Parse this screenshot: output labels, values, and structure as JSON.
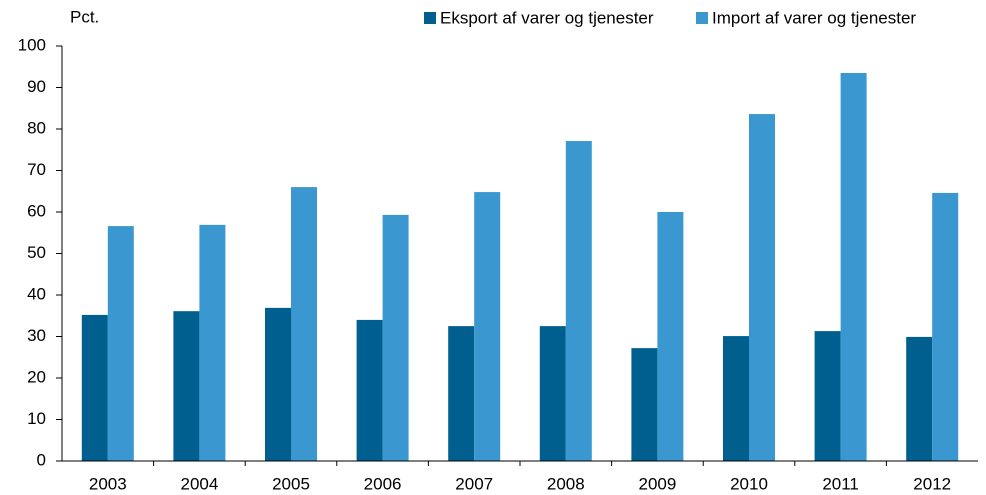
{
  "chart_data": {
    "type": "bar",
    "y_label": "Pct.",
    "categories": [
      "2003",
      "2004",
      "2005",
      "2006",
      "2007",
      "2008",
      "2009",
      "2010",
      "2011",
      "2012"
    ],
    "series": [
      {
        "name": "Eksport af varer og tjenester",
        "color": "#005f8e",
        "values": [
          35.2,
          36.1,
          36.9,
          34.0,
          32.5,
          32.5,
          27.2,
          30.1,
          31.3,
          29.9
        ]
      },
      {
        "name": "Import af varer og tjenester",
        "color": "#3a97cf",
        "values": [
          56.6,
          56.9,
          66.0,
          59.3,
          64.8,
          77.1,
          60.0,
          83.6,
          93.5,
          64.6
        ]
      }
    ],
    "ylim": [
      0,
      100
    ],
    "yticks": [
      0,
      10,
      20,
      30,
      40,
      50,
      60,
      70,
      80,
      90,
      100
    ],
    "grid": false
  }
}
